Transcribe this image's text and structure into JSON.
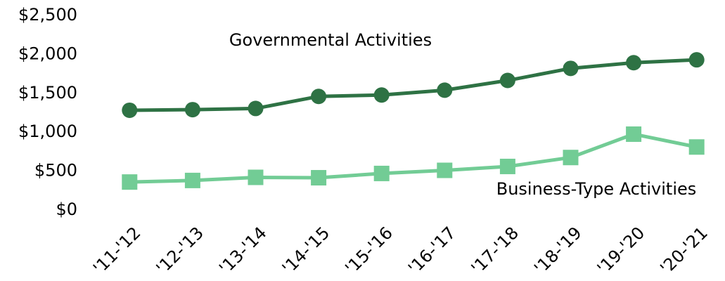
{
  "chart_data": {
    "type": "line",
    "categories": [
      "'11-'12",
      "'12-'13",
      "'13-'14",
      "'14-'15",
      "'15-'16",
      "'16-'17",
      "'17-'18",
      "'18-'19",
      "'19-'20",
      "'20-'21"
    ],
    "series": [
      {
        "name": "Governmental Activities",
        "color": "#2e7244",
        "marker": "circle",
        "values": [
          1282,
          1290,
          1305,
          1460,
          1478,
          1540,
          1665,
          1820,
          1893,
          1930
        ]
      },
      {
        "name": "Business-Type Activities",
        "color": "#72cc95",
        "marker": "square",
        "values": [
          360,
          380,
          420,
          415,
          470,
          510,
          560,
          675,
          975,
          810
        ]
      }
    ],
    "ylim": [
      0,
      2500
    ],
    "yticks": [
      {
        "value": 0,
        "label": "$0"
      },
      {
        "value": 500,
        "label": "$500"
      },
      {
        "value": 1000,
        "label": "$1,000"
      },
      {
        "value": 1500,
        "label": "$1,500"
      },
      {
        "value": 2000,
        "label": "$2,000"
      },
      {
        "value": 2500,
        "label": "$2,500"
      }
    ],
    "grid": false
  }
}
